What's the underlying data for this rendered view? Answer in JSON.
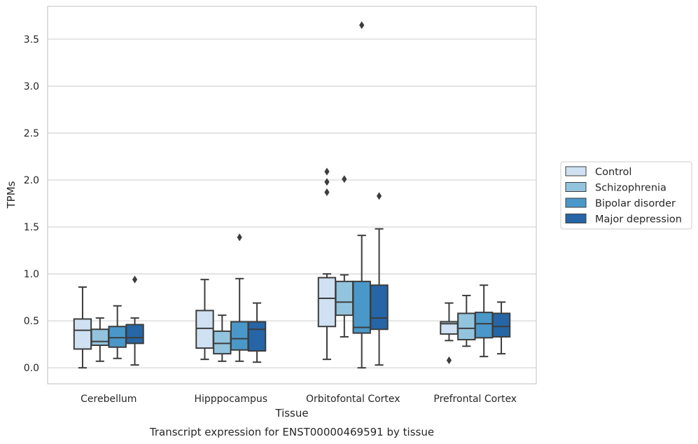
{
  "caption": "Transcript expression for ENST00000469591 by tissue",
  "chart_data": {
    "type": "box",
    "xlabel": "Tissue",
    "ylabel": "TPMs",
    "ylim": [
      -0.17,
      3.85
    ],
    "yticks": [
      0.0,
      0.5,
      1.0,
      1.5,
      2.0,
      2.5,
      3.0,
      3.5
    ],
    "ytick_labels": [
      "0.0",
      "0.5",
      "1.0",
      "1.5",
      "2.0",
      "2.5",
      "3.0",
      "3.5"
    ],
    "grid": true,
    "legend_position": "right",
    "categories": [
      "Cerebellum",
      "Hipppocampus",
      "Orbitofontal Cortex",
      "Prefrontal Cortex"
    ],
    "series": [
      {
        "name": "Control",
        "color": "#cfe1f2",
        "boxes": [
          {
            "whislo": 0.0,
            "q1": 0.2,
            "med": 0.4,
            "q3": 0.52,
            "whishi": 0.86,
            "fliers": []
          },
          {
            "whislo": 0.09,
            "q1": 0.21,
            "med": 0.42,
            "q3": 0.61,
            "whishi": 0.94,
            "fliers": []
          },
          {
            "whislo": 0.09,
            "q1": 0.44,
            "med": 0.74,
            "q3": 0.96,
            "whishi": 1.0,
            "fliers": [
              1.87,
              1.98,
              2.09
            ]
          },
          {
            "whislo": 0.29,
            "q1": 0.36,
            "med": 0.47,
            "q3": 0.49,
            "whishi": 0.69,
            "fliers": [
              0.08
            ]
          }
        ]
      },
      {
        "name": "Schizophrenia",
        "color": "#93c4de",
        "boxes": [
          {
            "whislo": 0.07,
            "q1": 0.24,
            "med": 0.28,
            "q3": 0.41,
            "whishi": 0.53,
            "fliers": []
          },
          {
            "whislo": 0.07,
            "q1": 0.15,
            "med": 0.26,
            "q3": 0.39,
            "whishi": 0.56,
            "fliers": []
          },
          {
            "whislo": 0.33,
            "q1": 0.56,
            "med": 0.7,
            "q3": 0.92,
            "whishi": 0.99,
            "fliers": [
              2.01
            ]
          },
          {
            "whislo": 0.23,
            "q1": 0.3,
            "med": 0.42,
            "q3": 0.58,
            "whishi": 0.77,
            "fliers": []
          }
        ]
      },
      {
        "name": "Bipolar disorder",
        "color": "#4a98c9",
        "boxes": [
          {
            "whislo": 0.1,
            "q1": 0.22,
            "med": 0.32,
            "q3": 0.44,
            "whishi": 0.66,
            "fliers": []
          },
          {
            "whislo": 0.07,
            "q1": 0.19,
            "med": 0.31,
            "q3": 0.49,
            "whishi": 0.95,
            "fliers": [
              1.39
            ]
          },
          {
            "whislo": 0.0,
            "q1": 0.37,
            "med": 0.43,
            "q3": 0.92,
            "whishi": 1.41,
            "fliers": [
              3.65
            ]
          },
          {
            "whislo": 0.12,
            "q1": 0.32,
            "med": 0.47,
            "q3": 0.59,
            "whishi": 0.88,
            "fliers": []
          }
        ]
      },
      {
        "name": "Major depression",
        "color": "#2666a6",
        "boxes": [
          {
            "whislo": 0.03,
            "q1": 0.26,
            "med": 0.32,
            "q3": 0.46,
            "whishi": 0.53,
            "fliers": [
              0.94
            ]
          },
          {
            "whislo": 0.06,
            "q1": 0.18,
            "med": 0.41,
            "q3": 0.49,
            "whishi": 0.69,
            "fliers": []
          },
          {
            "whislo": 0.03,
            "q1": 0.41,
            "med": 0.53,
            "q3": 0.88,
            "whishi": 1.48,
            "fliers": [
              1.83
            ]
          },
          {
            "whislo": 0.15,
            "q1": 0.33,
            "med": 0.44,
            "q3": 0.58,
            "whishi": 0.7,
            "fliers": []
          }
        ]
      }
    ]
  }
}
